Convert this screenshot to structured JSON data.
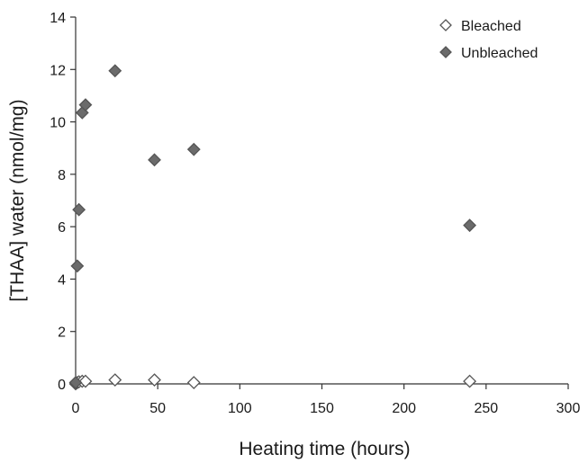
{
  "chart_data": {
    "type": "scatter",
    "title": "",
    "xlabel": "Heating time (hours)",
    "ylabel": "[THAA] water (nmol/mg)",
    "xlim": [
      0,
      300
    ],
    "ylim": [
      0,
      14
    ],
    "xticks": [
      "0",
      "50",
      "100",
      "150",
      "200",
      "250",
      "300"
    ],
    "yticks": [
      "0",
      "2",
      "4",
      "6",
      "8",
      "10",
      "12",
      "14"
    ],
    "grid": false,
    "legend_position": "top-right",
    "series": [
      {
        "name": "Bleached",
        "marker": "diamond-open",
        "color": "#555555",
        "fill": "#ffffff",
        "x": [
          0,
          1,
          2,
          4,
          6,
          24,
          48,
          72,
          240
        ],
        "y": [
          0.0,
          0.05,
          0.08,
          0.1,
          0.1,
          0.15,
          0.15,
          0.05,
          0.1
        ]
      },
      {
        "name": "Unbleached",
        "marker": "diamond-filled",
        "color": "#555555",
        "fill": "#6b6b6b",
        "x": [
          0,
          1,
          2,
          4,
          6,
          24,
          48,
          72,
          240
        ],
        "y": [
          0.05,
          4.5,
          6.65,
          10.35,
          10.65,
          11.95,
          8.55,
          8.95,
          6.05
        ]
      }
    ]
  }
}
